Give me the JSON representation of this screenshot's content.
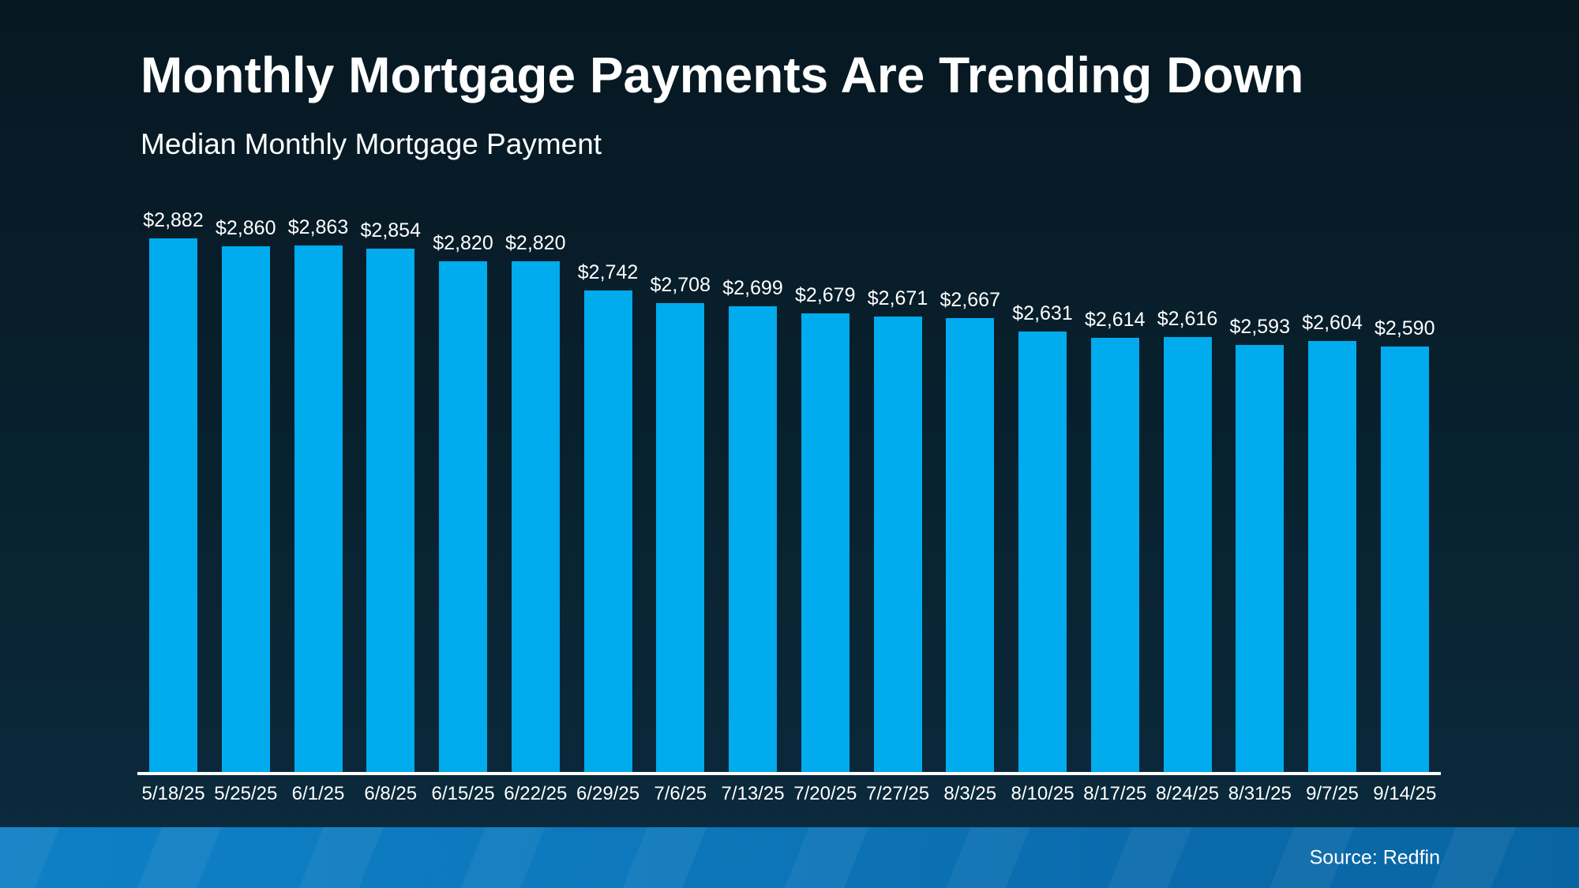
{
  "title": "Monthly Mortgage Payments Are Trending Down",
  "subtitle": "Median Monthly Mortgage Payment",
  "source_credit": "Source: Redfin",
  "colors": {
    "bar": "#00abee",
    "background_top": "#071822",
    "background_bottom": "#0b2b3e",
    "footer_band_left": "#0e80c6",
    "footer_band_right": "#0965a2",
    "axis_line": "#ffffff",
    "text": "#ffffff"
  },
  "chart_data": {
    "type": "bar",
    "title": "Monthly Mortgage Payments Are Trending Down",
    "subtitle": "Median Monthly Mortgage Payment",
    "categories": [
      "5/18/25",
      "5/25/25",
      "6/1/25",
      "6/8/25",
      "6/15/25",
      "6/22/25",
      "6/29/25",
      "7/6/25",
      "7/13/25",
      "7/20/25",
      "7/27/25",
      "8/3/25",
      "8/10/25",
      "8/17/25",
      "8/24/25",
      "8/31/25",
      "9/7/25",
      "9/14/25"
    ],
    "values": [
      2882,
      2860,
      2863,
      2854,
      2820,
      2820,
      2742,
      2708,
      2699,
      2679,
      2671,
      2667,
      2631,
      2614,
      2616,
      2593,
      2604,
      2590
    ],
    "value_labels": [
      "$2,882",
      "$2,860",
      "$2,863",
      "$2,854",
      "$2,820",
      "$2,820",
      "$2,742",
      "$2,708",
      "$2,699",
      "$2,679",
      "$2,671",
      "$2,667",
      "$2,631",
      "$2,614",
      "$2,616",
      "$2,593",
      "$2,604",
      "$2,590"
    ],
    "xlabel": "",
    "ylabel": "",
    "ylim": [
      1440,
      2950
    ],
    "grid": false,
    "legend": "none",
    "data_labels": "above-bars",
    "source": "Source: Redfin"
  }
}
